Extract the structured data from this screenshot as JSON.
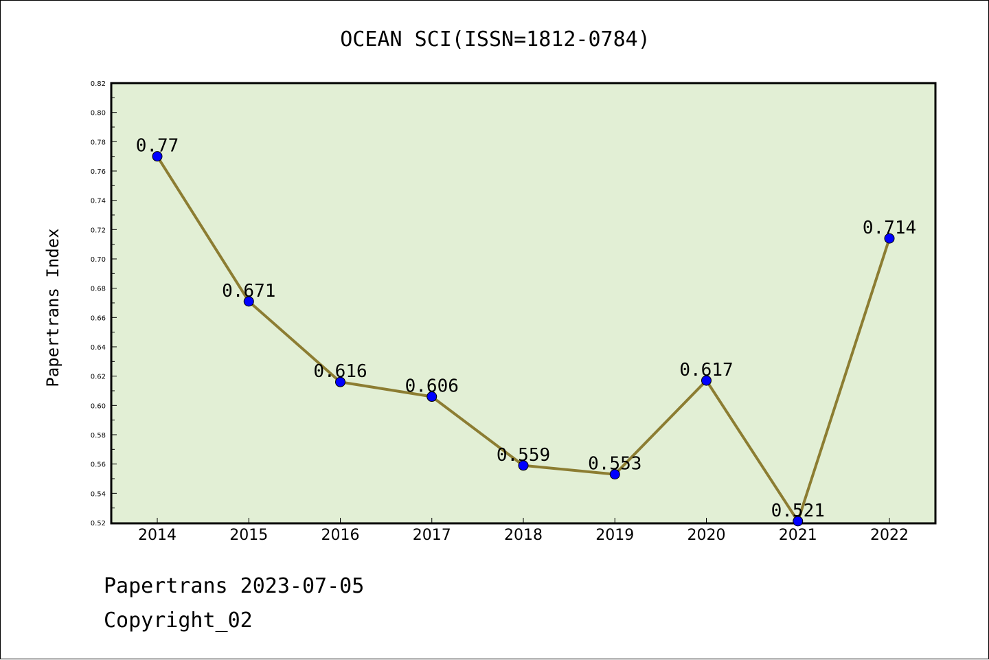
{
  "chart_data": {
    "type": "line",
    "title": "OCEAN SCI(ISSN=1812-0784)",
    "xlabel": "",
    "ylabel": "Papertrans Index",
    "categories": [
      "2014",
      "2015",
      "2016",
      "2017",
      "2018",
      "2019",
      "2020",
      "2021",
      "2022"
    ],
    "series": [
      {
        "name": "Papertrans Index",
        "values": [
          0.77,
          0.671,
          0.616,
          0.606,
          0.559,
          0.553,
          0.617,
          0.521,
          0.714
        ],
        "labels": [
          "0.77",
          "0.671",
          "0.616",
          "0.606",
          "0.559",
          "0.553",
          "0.617",
          "0.521",
          "0.714"
        ]
      }
    ],
    "ylim": [
      0.52,
      0.82
    ],
    "yticks": [
      "0.52",
      "0.54",
      "0.56",
      "0.58",
      "0.60",
      "0.62",
      "0.64",
      "0.66",
      "0.68",
      "0.70",
      "0.72",
      "0.74",
      "0.76",
      "0.78",
      "0.80",
      "0.82"
    ],
    "grid": false,
    "colors": {
      "plot_background": "#e2efd5",
      "line": "#8c7d32",
      "marker": "#0000ff"
    }
  },
  "footer": {
    "line1": "Papertrans 2023-07-05",
    "line2": "Copyright_02"
  }
}
